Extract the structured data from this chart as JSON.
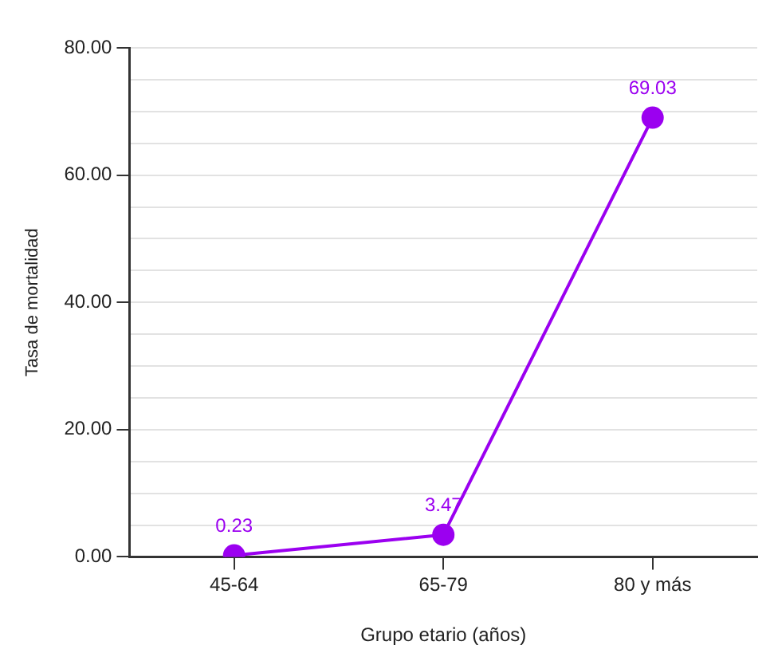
{
  "chart_data": {
    "type": "line",
    "xlabel": "Grupo etario (años)",
    "ylabel": "Tasa de mortalidad",
    "categories": [
      "45-64",
      "65-79",
      "80 y más"
    ],
    "series": [
      {
        "color": "#9b00f0",
        "values": [
          0.23,
          3.47,
          69.03
        ]
      }
    ],
    "ylim": [
      0,
      80
    ],
    "yticks": [
      {
        "value": 0,
        "label": "0.00"
      },
      {
        "value": 5,
        "label": null
      },
      {
        "value": 10,
        "label": null
      },
      {
        "value": 15,
        "label": null
      },
      {
        "value": 20,
        "label": "20.00"
      },
      {
        "value": 25,
        "label": null
      },
      {
        "value": 30,
        "label": null
      },
      {
        "value": 35,
        "label": null
      },
      {
        "value": 40,
        "label": "40.00"
      },
      {
        "value": 45,
        "label": null
      },
      {
        "value": 50,
        "label": null
      },
      {
        "value": 55,
        "label": null
      },
      {
        "value": 60,
        "label": "60.00"
      },
      {
        "value": 65,
        "label": null
      },
      {
        "value": 70,
        "label": null
      },
      {
        "value": 75,
        "label": null
      },
      {
        "value": 80,
        "label": "80.00"
      }
    ],
    "grid": "y",
    "marker": "circle",
    "line_style": "solid",
    "legend": false,
    "data_labels": true
  }
}
